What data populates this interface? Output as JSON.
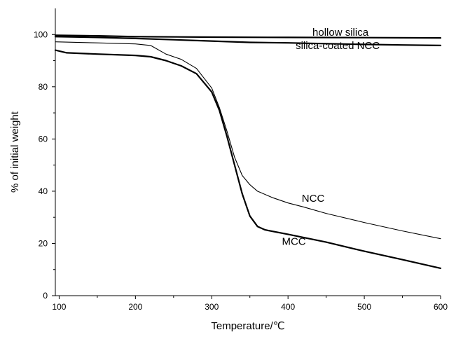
{
  "chart_data": {
    "type": "line",
    "xlabel": "Temperature/℃",
    "ylabel": "% of initial weight",
    "xlim": [
      95,
      600
    ],
    "ylim": [
      0,
      110
    ],
    "x_ticks": [
      100,
      200,
      300,
      400,
      500,
      600
    ],
    "y_ticks": [
      0,
      20,
      40,
      60,
      80,
      100
    ],
    "x_minor_ticks": [
      150,
      250,
      350,
      450,
      550
    ],
    "y_minor_ticks": [
      10,
      30,
      50,
      70,
      90
    ],
    "grid": false,
    "legend": "none",
    "series": [
      {
        "name": "hollow silica",
        "weight": "thick",
        "label_at": [
          432,
          99.5
        ],
        "points": [
          [
            95,
            99.7
          ],
          [
            150,
            99.5
          ],
          [
            200,
            99.2
          ],
          [
            300,
            99.0
          ],
          [
            400,
            98.9
          ],
          [
            500,
            98.8
          ],
          [
            600,
            98.7
          ]
        ]
      },
      {
        "name": "silica-coated NCC",
        "weight": "thick",
        "label_at": [
          410,
          94.5
        ],
        "points": [
          [
            95,
            99.2
          ],
          [
            150,
            98.9
          ],
          [
            200,
            98.5
          ],
          [
            250,
            98.0
          ],
          [
            300,
            97.5
          ],
          [
            350,
            97.0
          ],
          [
            400,
            96.8
          ],
          [
            450,
            96.5
          ],
          [
            500,
            96.2
          ],
          [
            550,
            96.0
          ],
          [
            600,
            95.8
          ]
        ]
      },
      {
        "name": "NCC",
        "weight": "thin",
        "label_at": [
          418,
          36
        ],
        "points": [
          [
            95,
            97.2
          ],
          [
            150,
            96.8
          ],
          [
            200,
            96.4
          ],
          [
            220,
            95.8
          ],
          [
            240,
            92.5
          ],
          [
            260,
            90.5
          ],
          [
            280,
            87.0
          ],
          [
            300,
            79.5
          ],
          [
            310,
            72.0
          ],
          [
            320,
            63.0
          ],
          [
            330,
            53.0
          ],
          [
            340,
            46.0
          ],
          [
            350,
            42.5
          ],
          [
            360,
            40.0
          ],
          [
            380,
            37.5
          ],
          [
            400,
            35.5
          ],
          [
            420,
            34.0
          ],
          [
            450,
            31.5
          ],
          [
            500,
            28.0
          ],
          [
            550,
            24.8
          ],
          [
            600,
            21.8
          ]
        ]
      },
      {
        "name": "MCC",
        "weight": "thick",
        "label_at": [
          392,
          19.5
        ],
        "points": [
          [
            95,
            94.0
          ],
          [
            110,
            93.0
          ],
          [
            150,
            92.5
          ],
          [
            200,
            92.0
          ],
          [
            220,
            91.5
          ],
          [
            240,
            90.0
          ],
          [
            260,
            88.0
          ],
          [
            280,
            85.0
          ],
          [
            300,
            78.0
          ],
          [
            310,
            71.0
          ],
          [
            320,
            61.0
          ],
          [
            330,
            50.0
          ],
          [
            340,
            39.0
          ],
          [
            350,
            30.5
          ],
          [
            360,
            26.5
          ],
          [
            370,
            25.2
          ],
          [
            400,
            23.5
          ],
          [
            450,
            20.5
          ],
          [
            500,
            17.0
          ],
          [
            550,
            13.8
          ],
          [
            600,
            10.5
          ]
        ]
      }
    ]
  }
}
